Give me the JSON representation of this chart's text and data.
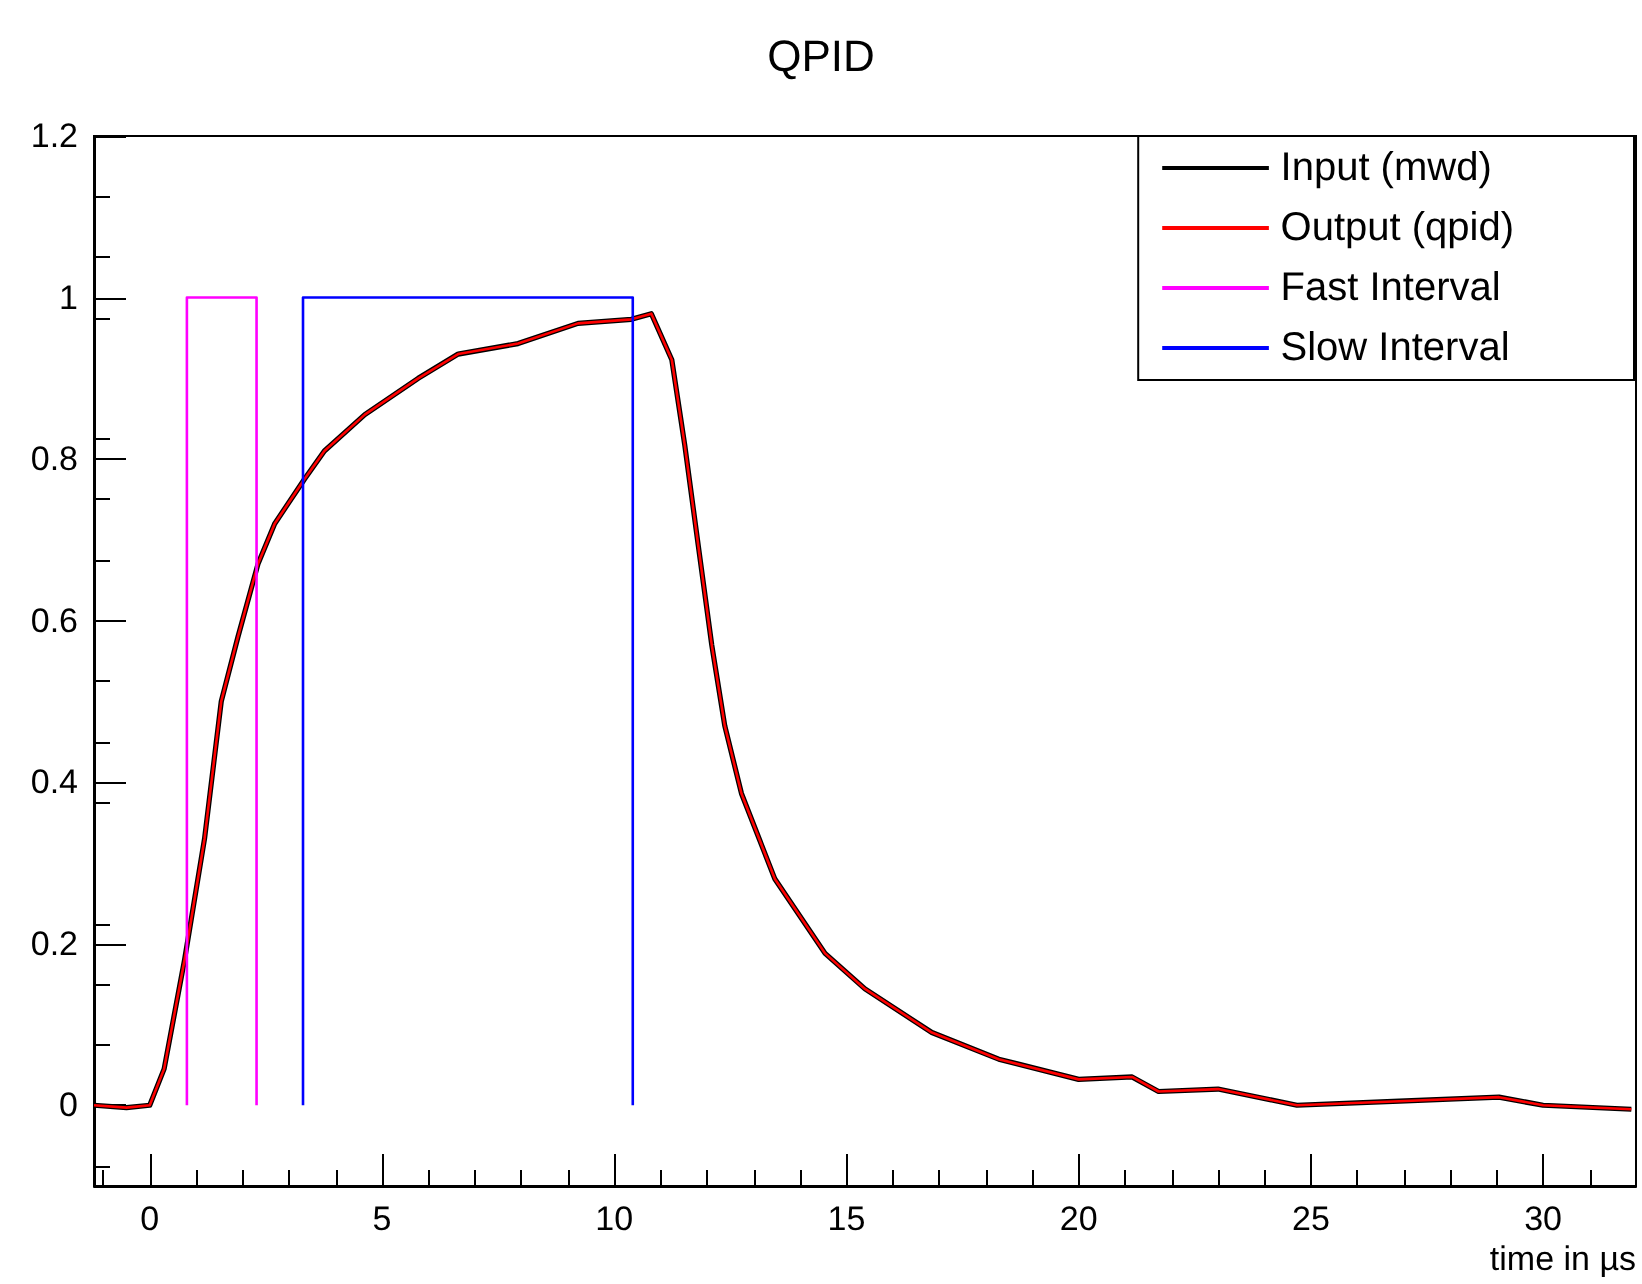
{
  "chart_data": {
    "type": "line",
    "title": "QPID",
    "xlabel": "time in µs",
    "xlim": [
      -1.2,
      32
    ],
    "xticks": [
      0,
      5,
      10,
      15,
      20,
      25,
      30
    ],
    "ylim": [
      -0.1,
      1.2
    ],
    "yticks": [
      0,
      0.2,
      0.4,
      0.6,
      0.8,
      1,
      1.2
    ],
    "grid": false,
    "legend": "top right",
    "marker": "none",
    "line_style": "solid",
    "x": [
      -1.2,
      -0.5,
      0,
      0.31,
      0.75,
      1.18,
      1.54,
      1.9,
      2.33,
      2.69,
      3.33,
      3.76,
      4.63,
      5.78,
      6.64,
      7.93,
      9.22,
      10.37,
      10.8,
      11.24,
      11.52,
      11.81,
      12.1,
      12.38,
      12.74,
      13.46,
      14.54,
      15.4,
      16.84,
      18.28,
      20,
      21.15,
      21.72,
      23,
      24.7,
      26.9,
      29.05,
      30,
      31.9
    ],
    "series": [
      {
        "name": "Input (mwd)",
        "color": "#000000",
        "values": [
          0,
          -0.003,
          0,
          0.045,
          0.18,
          0.33,
          0.5,
          0.58,
          0.67,
          0.72,
          0.775,
          0.81,
          0.855,
          0.9,
          0.93,
          0.943,
          0.968,
          0.973,
          0.98,
          0.923,
          0.817,
          0.693,
          0.57,
          0.47,
          0.386,
          0.28,
          0.188,
          0.144,
          0.09,
          0.057,
          0.032,
          0.035,
          0.017,
          0.02,
          0,
          0.005,
          0.01,
          0,
          -0.005
        ]
      },
      {
        "name": "Output (qpid)",
        "color": "#ff0000",
        "values": [
          0,
          -0.003,
          0,
          0.045,
          0.18,
          0.33,
          0.5,
          0.58,
          0.67,
          0.72,
          0.775,
          0.81,
          0.855,
          0.9,
          0.93,
          0.943,
          0.968,
          0.973,
          0.98,
          0.923,
          0.817,
          0.693,
          0.57,
          0.47,
          0.386,
          0.28,
          0.188,
          0.144,
          0.09,
          0.057,
          0.032,
          0.035,
          0.017,
          0.02,
          0,
          0.005,
          0.01,
          0,
          -0.005
        ]
      },
      {
        "name": "Fast Interval",
        "color": "#ff00ff",
        "x": [
          0.8,
          0.8,
          2.3,
          2.3
        ],
        "values": [
          0,
          1,
          1,
          0
        ]
      },
      {
        "name": "Slow Interval",
        "color": "#0000ff",
        "x": [
          3.3,
          3.3,
          10.4,
          10.4
        ],
        "values": [
          0,
          1,
          1,
          0
        ]
      }
    ]
  }
}
